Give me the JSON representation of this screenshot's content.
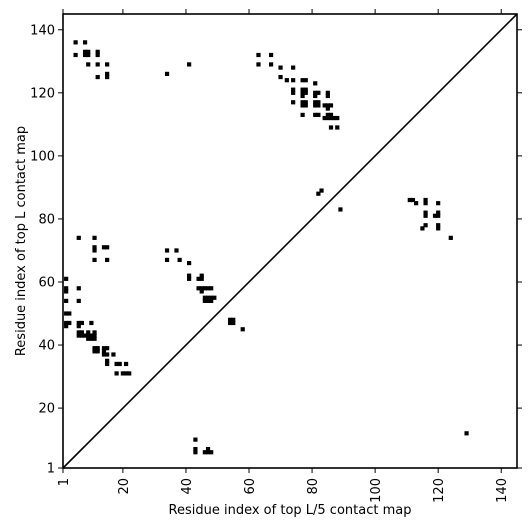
{
  "chart_data": {
    "type": "scatter",
    "title": "",
    "xlabel": "Residue index of top L/5 contact map",
    "ylabel": "Residue index of top L contact map",
    "xlim": [
      1,
      145
    ],
    "ylim": [
      1,
      145
    ],
    "x_ticks": [
      1,
      20,
      40,
      60,
      80,
      100,
      120,
      140
    ],
    "y_ticks": [
      1,
      20,
      40,
      60,
      80,
      100,
      120,
      140
    ],
    "grid": false,
    "marker": "square",
    "marker_color": "#000000",
    "reference_line": {
      "from": [
        1,
        1
      ],
      "to": [
        145,
        145
      ]
    },
    "series": [
      {
        "points": [
          [
            5,
            136
          ],
          [
            8,
            136
          ],
          [
            5,
            132
          ],
          [
            8,
            133
          ],
          [
            9,
            133
          ],
          [
            8,
            132
          ],
          [
            9,
            132
          ],
          [
            12,
            133
          ],
          [
            12,
            132
          ],
          [
            9,
            129
          ],
          [
            12,
            129
          ],
          [
            15,
            129
          ],
          [
            12,
            125
          ],
          [
            15,
            126
          ],
          [
            15,
            125
          ],
          [
            34,
            126
          ],
          [
            41,
            129
          ],
          [
            63,
            132
          ],
          [
            67,
            132
          ],
          [
            63,
            129
          ],
          [
            67,
            129
          ],
          [
            70,
            128
          ],
          [
            74,
            128
          ],
          [
            70,
            125
          ],
          [
            72,
            124
          ],
          [
            74,
            124
          ],
          [
            77,
            124
          ],
          [
            78,
            124
          ],
          [
            81,
            123
          ],
          [
            74,
            121
          ],
          [
            77,
            121
          ],
          [
            78,
            121
          ],
          [
            74,
            120
          ],
          [
            77,
            120
          ],
          [
            78,
            120
          ],
          [
            81,
            120
          ],
          [
            82,
            120
          ],
          [
            85,
            120
          ],
          [
            77,
            119
          ],
          [
            81,
            119
          ],
          [
            85,
            119
          ],
          [
            74,
            117
          ],
          [
            77,
            117
          ],
          [
            78,
            117
          ],
          [
            77,
            116
          ],
          [
            78,
            116
          ],
          [
            81,
            117
          ],
          [
            82,
            117
          ],
          [
            81,
            116
          ],
          [
            82,
            116
          ],
          [
            84,
            116
          ],
          [
            85,
            116
          ],
          [
            86,
            116
          ],
          [
            85,
            115
          ],
          [
            77,
            113
          ],
          [
            81,
            113
          ],
          [
            82,
            113
          ],
          [
            85,
            113
          ],
          [
            86,
            113
          ],
          [
            84,
            112
          ],
          [
            85,
            112
          ],
          [
            86,
            112
          ],
          [
            87,
            112
          ],
          [
            88,
            112
          ],
          [
            86,
            109
          ],
          [
            88,
            109
          ],
          [
            82,
            88
          ],
          [
            83,
            89
          ],
          [
            89,
            83
          ],
          [
            111,
            86
          ],
          [
            112,
            86
          ],
          [
            113,
            85
          ],
          [
            116,
            86
          ],
          [
            116,
            85
          ],
          [
            120,
            85
          ],
          [
            116,
            82
          ],
          [
            116,
            81
          ],
          [
            119,
            81
          ],
          [
            120,
            82
          ],
          [
            120,
            81
          ],
          [
            120,
            78
          ],
          [
            120,
            77
          ],
          [
            116,
            78
          ],
          [
            115,
            77
          ],
          [
            124,
            74
          ],
          [
            6,
            74
          ],
          [
            11,
            74
          ],
          [
            11,
            71
          ],
          [
            11,
            70
          ],
          [
            14,
            71
          ],
          [
            15,
            71
          ],
          [
            11,
            67
          ],
          [
            15,
            67
          ],
          [
            34,
            70
          ],
          [
            37,
            70
          ],
          [
            34,
            67
          ],
          [
            38,
            67
          ],
          [
            41,
            66
          ],
          [
            41,
            62
          ],
          [
            41,
            61
          ],
          [
            45,
            62
          ],
          [
            44,
            61
          ],
          [
            45,
            61
          ],
          [
            2,
            61
          ],
          [
            2,
            58
          ],
          [
            2,
            57
          ],
          [
            6,
            58
          ],
          [
            44,
            58
          ],
          [
            45,
            58
          ],
          [
            46,
            58
          ],
          [
            47,
            58
          ],
          [
            48,
            58
          ],
          [
            45,
            57
          ],
          [
            2,
            54
          ],
          [
            6,
            54
          ],
          [
            46,
            55
          ],
          [
            47,
            55
          ],
          [
            48,
            55
          ],
          [
            49,
            55
          ],
          [
            46,
            54
          ],
          [
            47,
            54
          ],
          [
            48,
            54
          ],
          [
            2,
            50
          ],
          [
            3,
            50
          ],
          [
            54,
            48
          ],
          [
            55,
            48
          ],
          [
            54,
            47
          ],
          [
            55,
            47
          ],
          [
            58,
            45
          ],
          [
            2,
            47
          ],
          [
            3,
            47
          ],
          [
            2,
            46
          ],
          [
            6,
            47
          ],
          [
            7,
            47
          ],
          [
            6,
            46
          ],
          [
            10,
            47
          ],
          [
            6,
            44
          ],
          [
            7,
            44
          ],
          [
            6,
            43
          ],
          [
            7,
            43
          ],
          [
            8,
            43
          ],
          [
            9,
            43
          ],
          [
            10,
            43
          ],
          [
            11,
            43
          ],
          [
            9,
            44
          ],
          [
            11,
            44
          ],
          [
            9,
            42
          ],
          [
            10,
            42
          ],
          [
            11,
            42
          ],
          [
            11,
            39
          ],
          [
            12,
            39
          ],
          [
            11,
            38
          ],
          [
            12,
            38
          ],
          [
            14,
            39
          ],
          [
            15,
            39
          ],
          [
            14,
            38
          ],
          [
            14,
            37
          ],
          [
            15,
            37
          ],
          [
            17,
            37
          ],
          [
            15,
            35
          ],
          [
            15,
            34
          ],
          [
            18,
            34
          ],
          [
            19,
            34
          ],
          [
            21,
            34
          ],
          [
            18,
            31
          ],
          [
            20,
            31
          ],
          [
            21,
            31
          ],
          [
            22,
            31
          ],
          [
            43,
            10
          ],
          [
            43,
            7
          ],
          [
            43,
            6
          ],
          [
            46,
            6
          ],
          [
            47,
            6
          ],
          [
            48,
            6
          ],
          [
            47,
            7
          ],
          [
            129,
            12
          ]
        ]
      }
    ]
  }
}
